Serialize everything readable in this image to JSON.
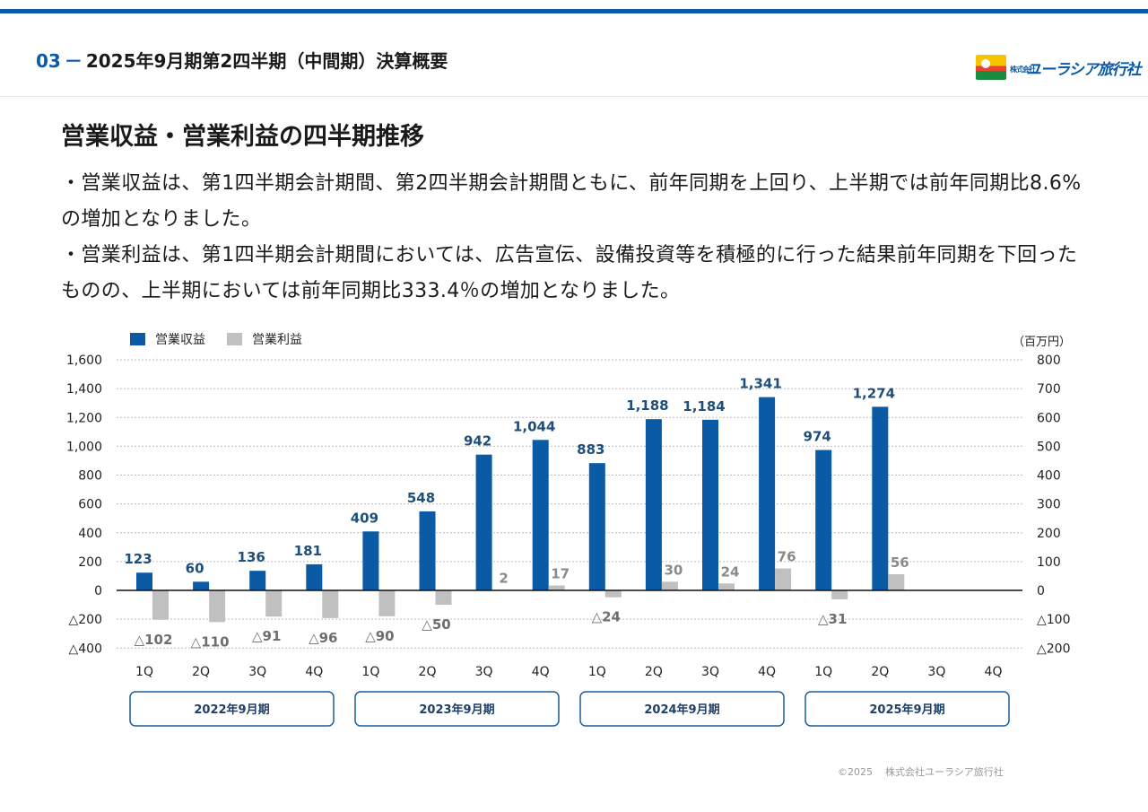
{
  "header": {
    "section_number": "03",
    "section_dash": "－",
    "title": "2025年9月期第2四半期（中間期）決算概要",
    "logo_small": "株式会社",
    "logo_text": "ユーラシア旅行社"
  },
  "page_heading": "営業収益・営業利益の四半期推移",
  "body": {
    "bullet_1": "・営業収益は、第1四半期会計期間、第2四半期会計期間ともに、前年同期を上回り、上半期では前年同期比8.6%の増加となりました。",
    "bullet_2": "・営業利益は、第1四半期会計期間においては、広告宣伝、設備投資等を積極的に行った結果前年同期を下回ったものの、上半期においては前年同期比333.4％の増加となりました。"
  },
  "footer": {
    "copyright": "©2025",
    "company": "株式会社ユーラシア旅行社"
  },
  "chart_data": {
    "type": "bar",
    "unit_label": "（百万円）",
    "categories": [
      "1Q",
      "2Q",
      "3Q",
      "4Q",
      "1Q",
      "2Q",
      "3Q",
      "4Q",
      "1Q",
      "2Q",
      "3Q",
      "4Q",
      "1Q",
      "2Q",
      "3Q",
      "4Q"
    ],
    "groups": [
      "2022年9月期",
      "2023年9月期",
      "2024年9月期",
      "2025年9月期"
    ],
    "series": [
      {
        "name": "営業収益",
        "axis": "left",
        "color": "#0a5aa6",
        "values": [
          123,
          60,
          136,
          181,
          409,
          548,
          942,
          1044,
          883,
          1188,
          1184,
          1341,
          974,
          1274,
          null,
          null
        ],
        "labels": [
          "123",
          "60",
          "136",
          "181",
          "409",
          "548",
          "942",
          "1,044",
          "883",
          "1,188",
          "1,184",
          "1,341",
          "974",
          "1,274",
          "",
          ""
        ]
      },
      {
        "name": "営業利益",
        "axis": "right",
        "color": "#c0c0c0",
        "values": [
          -102,
          -110,
          -91,
          -96,
          -90,
          -50,
          2,
          17,
          -24,
          30,
          24,
          76,
          -31,
          56,
          null,
          null
        ],
        "labels": [
          "△102",
          "△110",
          "△91",
          "△96",
          "△90",
          "△50",
          "2",
          "17",
          "△24",
          "30",
          "24",
          "76",
          "△31",
          "56",
          "",
          ""
        ]
      }
    ],
    "left_axis": {
      "ylim": [
        -400,
        1600
      ],
      "ticks": [
        1600,
        1400,
        1200,
        1000,
        800,
        600,
        400,
        200,
        0,
        -200,
        -400
      ],
      "tick_labels": [
        "1,600",
        "1,400",
        "1,200",
        "1,000",
        "800",
        "600",
        "400",
        "200",
        "0",
        "△200",
        "△400"
      ]
    },
    "right_axis": {
      "ylim": [
        -200,
        800
      ],
      "ticks": [
        800,
        700,
        600,
        500,
        400,
        300,
        200,
        100,
        0,
        -100,
        -200
      ],
      "tick_labels": [
        "800",
        "700",
        "600",
        "500",
        "400",
        "300",
        "200",
        "100",
        "0",
        "△100",
        "△200"
      ]
    },
    "grid": true,
    "legend_position": "top-left"
  }
}
